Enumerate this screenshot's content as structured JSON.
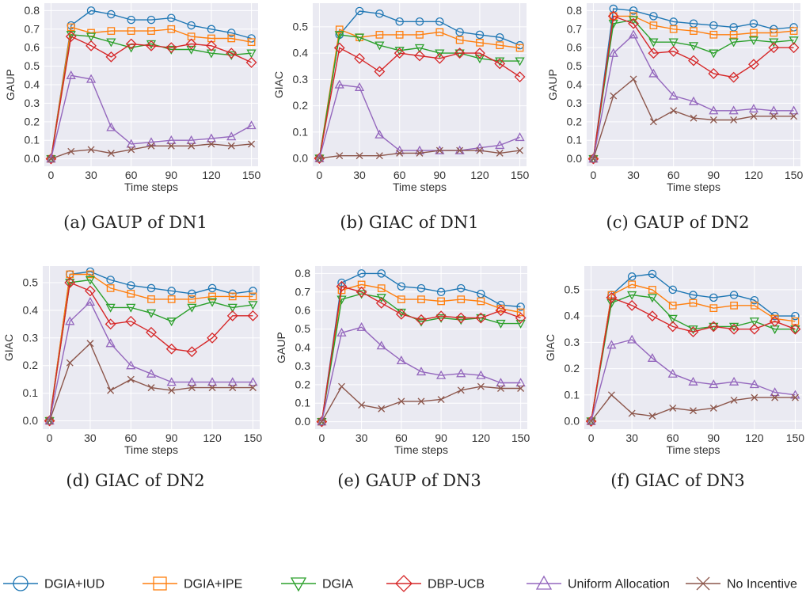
{
  "figure": {
    "legend": [
      {
        "label": "DGIA+IUD",
        "color": "#1f77b4",
        "marker": "circle"
      },
      {
        "label": "DGIA+IPE",
        "color": "#ff7f0e",
        "marker": "square"
      },
      {
        "label": "DGIA",
        "color": "#2ca02c",
        "marker": "triangle-down"
      },
      {
        "label": "DBP-UCB",
        "color": "#d62728",
        "marker": "diamond"
      },
      {
        "label": "Uniform Allocation",
        "color": "#9467bd",
        "marker": "triangle-up"
      },
      {
        "label": "No Incentive",
        "color": "#8c564b",
        "marker": "x"
      }
    ]
  },
  "chart_data": [
    {
      "type": "line",
      "caption": "(a) GAUP of DN1",
      "xlabel": "Time steps",
      "ylabel": "GAUP",
      "xlim": [
        -5,
        155
      ],
      "ylim": [
        -0.04,
        0.84
      ],
      "xticks": [
        0,
        30,
        60,
        90,
        120,
        150
      ],
      "yticks": [
        0.0,
        0.1,
        0.2,
        0.3,
        0.4,
        0.5,
        0.6,
        0.7,
        0.8
      ],
      "ytick_labels": [
        "0.0",
        "0.1",
        "0.2",
        "0.3",
        "0.4",
        "0.5",
        "0.6",
        "0.7",
        "0.8"
      ],
      "grid": true,
      "x": [
        0,
        15,
        30,
        45,
        60,
        75,
        90,
        105,
        120,
        135,
        150
      ],
      "series": [
        {
          "name": "DGIA+IUD",
          "values": [
            0.0,
            0.72,
            0.8,
            0.78,
            0.75,
            0.75,
            0.76,
            0.72,
            0.7,
            0.68,
            0.65
          ]
        },
        {
          "name": "DGIA+IPE",
          "values": [
            0.0,
            0.71,
            0.68,
            0.69,
            0.69,
            0.69,
            0.7,
            0.66,
            0.65,
            0.65,
            0.63
          ]
        },
        {
          "name": "DGIA",
          "values": [
            0.0,
            0.67,
            0.66,
            0.63,
            0.6,
            0.62,
            0.59,
            0.59,
            0.57,
            0.56,
            0.57
          ]
        },
        {
          "name": "DBP-UCB",
          "values": [
            0.0,
            0.66,
            0.61,
            0.55,
            0.62,
            0.61,
            0.6,
            0.62,
            0.61,
            0.57,
            0.52
          ]
        },
        {
          "name": "Uniform Allocation",
          "values": [
            0.0,
            0.45,
            0.43,
            0.17,
            0.08,
            0.09,
            0.1,
            0.1,
            0.11,
            0.12,
            0.18
          ]
        },
        {
          "name": "No Incentive",
          "values": [
            0.0,
            0.04,
            0.05,
            0.03,
            0.05,
            0.07,
            0.07,
            0.07,
            0.08,
            0.07,
            0.08
          ]
        }
      ]
    },
    {
      "type": "line",
      "caption": "(b) GIAC of DN1",
      "xlabel": "Time steps",
      "ylabel": "GIAC",
      "xlim": [
        -5,
        155
      ],
      "ylim": [
        -0.03,
        0.59
      ],
      "xticks": [
        0,
        30,
        60,
        90,
        120,
        150
      ],
      "yticks": [
        0.0,
        0.1,
        0.2,
        0.3,
        0.4,
        0.5
      ],
      "ytick_labels": [
        "0.0",
        "0.1",
        "0.2",
        "0.3",
        "0.4",
        "0.5"
      ],
      "grid": true,
      "x": [
        0,
        15,
        30,
        45,
        60,
        75,
        90,
        105,
        120,
        135,
        150
      ],
      "series": [
        {
          "name": "DGIA+IUD",
          "values": [
            0.0,
            0.47,
            0.56,
            0.55,
            0.52,
            0.52,
            0.52,
            0.48,
            0.47,
            0.46,
            0.43
          ]
        },
        {
          "name": "DGIA+IPE",
          "values": [
            0.0,
            0.49,
            0.46,
            0.47,
            0.47,
            0.47,
            0.48,
            0.45,
            0.44,
            0.43,
            0.42
          ]
        },
        {
          "name": "DGIA",
          "values": [
            0.0,
            0.47,
            0.46,
            0.43,
            0.41,
            0.42,
            0.4,
            0.4,
            0.38,
            0.37,
            0.37
          ]
        },
        {
          "name": "DBP-UCB",
          "values": [
            0.0,
            0.42,
            0.38,
            0.33,
            0.4,
            0.39,
            0.38,
            0.4,
            0.4,
            0.36,
            0.31
          ]
        },
        {
          "name": "Uniform Allocation",
          "values": [
            0.0,
            0.28,
            0.27,
            0.09,
            0.03,
            0.03,
            0.03,
            0.03,
            0.04,
            0.05,
            0.08
          ]
        },
        {
          "name": "No Incentive",
          "values": [
            0.0,
            0.01,
            0.01,
            0.01,
            0.02,
            0.02,
            0.03,
            0.03,
            0.03,
            0.02,
            0.03
          ]
        }
      ]
    },
    {
      "type": "line",
      "caption": "(c) GAUP of DN2",
      "xlabel": "Time steps",
      "ylabel": "GAUP",
      "xlim": [
        -5,
        155
      ],
      "ylim": [
        -0.04,
        0.84
      ],
      "xticks": [
        0,
        30,
        60,
        90,
        120,
        150
      ],
      "yticks": [
        0.0,
        0.1,
        0.2,
        0.3,
        0.4,
        0.5,
        0.6,
        0.7,
        0.8
      ],
      "ytick_labels": [
        "0.0",
        "0.1",
        "0.2",
        "0.3",
        "0.4",
        "0.5",
        "0.6",
        "0.7",
        "0.8"
      ],
      "grid": true,
      "x": [
        0,
        15,
        30,
        45,
        60,
        75,
        90,
        105,
        120,
        135,
        150
      ],
      "series": [
        {
          "name": "DGIA+IUD",
          "values": [
            0.0,
            0.81,
            0.8,
            0.77,
            0.74,
            0.73,
            0.72,
            0.71,
            0.73,
            0.7,
            0.71
          ]
        },
        {
          "name": "DGIA+IPE",
          "values": [
            0.0,
            0.77,
            0.77,
            0.72,
            0.7,
            0.69,
            0.67,
            0.67,
            0.68,
            0.68,
            0.69
          ]
        },
        {
          "name": "DGIA",
          "values": [
            0.0,
            0.73,
            0.75,
            0.63,
            0.63,
            0.61,
            0.57,
            0.63,
            0.64,
            0.63,
            0.64
          ]
        },
        {
          "name": "DBP-UCB",
          "values": [
            0.0,
            0.77,
            0.73,
            0.57,
            0.58,
            0.53,
            0.46,
            0.44,
            0.51,
            0.6,
            0.6
          ]
        },
        {
          "name": "Uniform Allocation",
          "values": [
            0.0,
            0.57,
            0.67,
            0.46,
            0.34,
            0.31,
            0.26,
            0.26,
            0.27,
            0.26,
            0.26
          ]
        },
        {
          "name": "No Incentive",
          "values": [
            0.0,
            0.34,
            0.43,
            0.2,
            0.26,
            0.22,
            0.21,
            0.21,
            0.23,
            0.23,
            0.23
          ]
        }
      ]
    },
    {
      "type": "line",
      "caption": "(d) GIAC of DN2",
      "xlabel": "Time steps",
      "ylabel": "GIAC",
      "xlim": [
        -5,
        155
      ],
      "ylim": [
        -0.03,
        0.56
      ],
      "xticks": [
        0,
        30,
        60,
        90,
        120,
        150
      ],
      "yticks": [
        0.0,
        0.1,
        0.2,
        0.3,
        0.4,
        0.5
      ],
      "ytick_labels": [
        "0.0",
        "0.1",
        "0.2",
        "0.3",
        "0.4",
        "0.5"
      ],
      "grid": true,
      "x": [
        0,
        15,
        30,
        45,
        60,
        75,
        90,
        105,
        120,
        135,
        150
      ],
      "series": [
        {
          "name": "DGIA+IUD",
          "values": [
            0.0,
            0.53,
            0.54,
            0.51,
            0.49,
            0.48,
            0.47,
            0.46,
            0.48,
            0.46,
            0.47
          ]
        },
        {
          "name": "DGIA+IPE",
          "values": [
            0.0,
            0.53,
            0.53,
            0.48,
            0.46,
            0.44,
            0.44,
            0.44,
            0.45,
            0.45,
            0.45
          ]
        },
        {
          "name": "DGIA",
          "values": [
            0.0,
            0.5,
            0.51,
            0.41,
            0.41,
            0.39,
            0.36,
            0.41,
            0.43,
            0.41,
            0.42
          ]
        },
        {
          "name": "DBP-UCB",
          "values": [
            0.0,
            0.5,
            0.47,
            0.35,
            0.36,
            0.32,
            0.26,
            0.25,
            0.3,
            0.38,
            0.38
          ]
        },
        {
          "name": "Uniform Allocation",
          "values": [
            0.0,
            0.36,
            0.43,
            0.28,
            0.2,
            0.17,
            0.14,
            0.14,
            0.14,
            0.14,
            0.14
          ]
        },
        {
          "name": "No Incentive",
          "values": [
            0.0,
            0.21,
            0.28,
            0.11,
            0.15,
            0.12,
            0.11,
            0.12,
            0.12,
            0.12,
            0.12
          ]
        }
      ]
    },
    {
      "type": "line",
      "caption": "(e) GAUP of DN3",
      "xlabel": "Time steps",
      "ylabel": "GAUP",
      "xlim": [
        -5,
        155
      ],
      "ylim": [
        -0.04,
        0.84
      ],
      "xticks": [
        0,
        30,
        60,
        90,
        120,
        150
      ],
      "yticks": [
        0.0,
        0.1,
        0.2,
        0.3,
        0.4,
        0.5,
        0.6,
        0.7,
        0.8
      ],
      "ytick_labels": [
        "0.0",
        "0.1",
        "0.2",
        "0.3",
        "0.4",
        "0.5",
        "0.6",
        "0.7",
        "0.8"
      ],
      "grid": true,
      "x": [
        0,
        15,
        30,
        45,
        60,
        75,
        90,
        105,
        120,
        135,
        150
      ],
      "series": [
        {
          "name": "DGIA+IUD",
          "values": [
            0.0,
            0.75,
            0.8,
            0.8,
            0.73,
            0.72,
            0.7,
            0.72,
            0.69,
            0.63,
            0.62
          ]
        },
        {
          "name": "DGIA+IPE",
          "values": [
            0.0,
            0.71,
            0.74,
            0.72,
            0.66,
            0.66,
            0.65,
            0.66,
            0.65,
            0.61,
            0.59
          ]
        },
        {
          "name": "DGIA",
          "values": [
            0.0,
            0.66,
            0.69,
            0.67,
            0.59,
            0.54,
            0.56,
            0.55,
            0.56,
            0.53,
            0.53
          ]
        },
        {
          "name": "DBP-UCB",
          "values": [
            0.0,
            0.73,
            0.7,
            0.64,
            0.58,
            0.55,
            0.57,
            0.56,
            0.56,
            0.6,
            0.56
          ]
        },
        {
          "name": "Uniform Allocation",
          "values": [
            0.0,
            0.48,
            0.51,
            0.41,
            0.33,
            0.27,
            0.25,
            0.26,
            0.25,
            0.21,
            0.21
          ]
        },
        {
          "name": "No Incentive",
          "values": [
            0.0,
            0.19,
            0.09,
            0.07,
            0.11,
            0.11,
            0.12,
            0.17,
            0.19,
            0.18,
            0.18
          ]
        }
      ]
    },
    {
      "type": "line",
      "caption": "(f) GIAC of DN3",
      "xlabel": "Time steps",
      "ylabel": "GIAC",
      "xlim": [
        -5,
        155
      ],
      "ylim": [
        -0.03,
        0.59
      ],
      "xticks": [
        0,
        30,
        60,
        90,
        120,
        150
      ],
      "yticks": [
        0.0,
        0.1,
        0.2,
        0.3,
        0.4,
        0.5
      ],
      "ytick_labels": [
        "0.0",
        "0.1",
        "0.2",
        "0.3",
        "0.4",
        "0.5"
      ],
      "grid": true,
      "x": [
        0,
        15,
        30,
        45,
        60,
        75,
        90,
        105,
        120,
        135,
        150
      ],
      "series": [
        {
          "name": "DGIA+IUD",
          "values": [
            0.0,
            0.48,
            0.55,
            0.56,
            0.5,
            0.48,
            0.47,
            0.48,
            0.46,
            0.4,
            0.4
          ]
        },
        {
          "name": "DGIA+IPE",
          "values": [
            0.0,
            0.48,
            0.52,
            0.5,
            0.44,
            0.45,
            0.43,
            0.44,
            0.44,
            0.39,
            0.38
          ]
        },
        {
          "name": "DGIA",
          "values": [
            0.0,
            0.45,
            0.48,
            0.47,
            0.39,
            0.35,
            0.36,
            0.36,
            0.38,
            0.35,
            0.35
          ]
        },
        {
          "name": "DBP-UCB",
          "values": [
            0.0,
            0.47,
            0.44,
            0.4,
            0.36,
            0.34,
            0.36,
            0.35,
            0.35,
            0.38,
            0.35
          ]
        },
        {
          "name": "Uniform Allocation",
          "values": [
            0.0,
            0.29,
            0.31,
            0.24,
            0.18,
            0.15,
            0.14,
            0.15,
            0.14,
            0.11,
            0.1
          ]
        },
        {
          "name": "No Incentive",
          "values": [
            0.0,
            0.1,
            0.03,
            0.02,
            0.05,
            0.04,
            0.05,
            0.08,
            0.09,
            0.09,
            0.09
          ]
        }
      ]
    }
  ]
}
